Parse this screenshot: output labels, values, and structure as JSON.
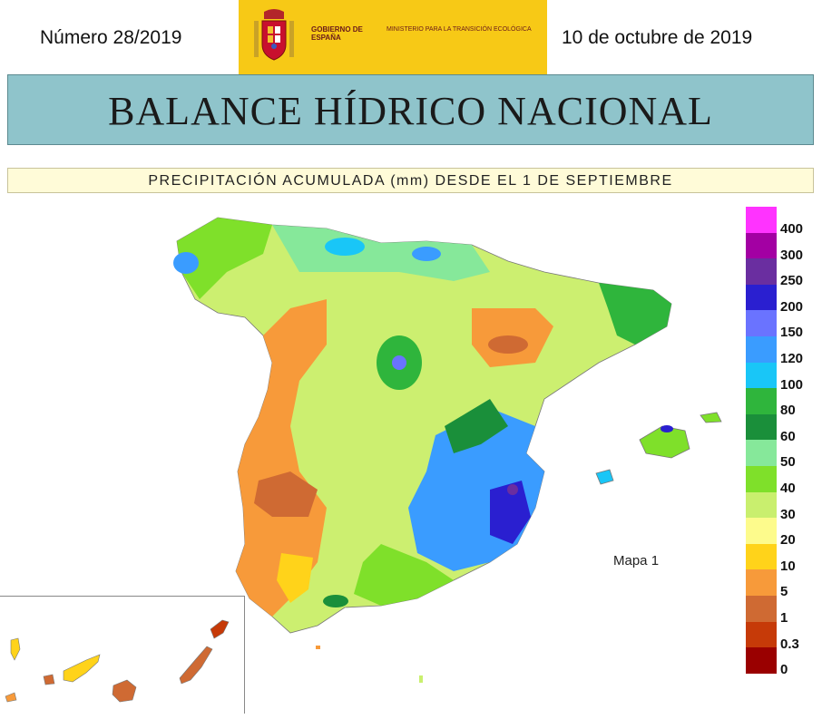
{
  "header": {
    "issue_number": "Número 28/2019",
    "date": "10 de octubre de 2019",
    "logo": {
      "gov_text": "GOBIERNO DE ESPAÑA",
      "ministry_text": "MINISTERIO PARA LA TRANSICIÓN ECOLÓGICA",
      "color": "#f7c916"
    }
  },
  "title": "BALANCE HÍDRICO NACIONAL",
  "subtitle": "PRECIPITACIÓN ACUMULADA (mm) DESDE EL 1 DE SEPTIEMBRE",
  "map": {
    "label": "Mapa 1",
    "legend": [
      {
        "label": "400",
        "color": "#ff33ff"
      },
      {
        "label": "300",
        "color": "#a300a3"
      },
      {
        "label": "250",
        "color": "#6a2ea0"
      },
      {
        "label": "200",
        "color": "#2a1fd0"
      },
      {
        "label": "150",
        "color": "#6a73ff"
      },
      {
        "label": "120",
        "color": "#3a9cff"
      },
      {
        "label": "100",
        "color": "#19c6f7"
      },
      {
        "label": "80",
        "color": "#2fb53c"
      },
      {
        "label": "60",
        "color": "#1a8f3a"
      },
      {
        "label": "50",
        "color": "#86e89a"
      },
      {
        "label": "40",
        "color": "#7fe02a"
      },
      {
        "label": "30",
        "color": "#c9ef6e"
      },
      {
        "label": "20",
        "color": "#fdfb8c"
      },
      {
        "label": "10",
        "color": "#ffd31a"
      },
      {
        "label": "5",
        "color": "#f79a3a"
      },
      {
        "label": "1",
        "color": "#cf6a33"
      },
      {
        "label": "0.3",
        "color": "#c63a08"
      },
      {
        "label": "0",
        "color": "#9a0000"
      }
    ]
  }
}
